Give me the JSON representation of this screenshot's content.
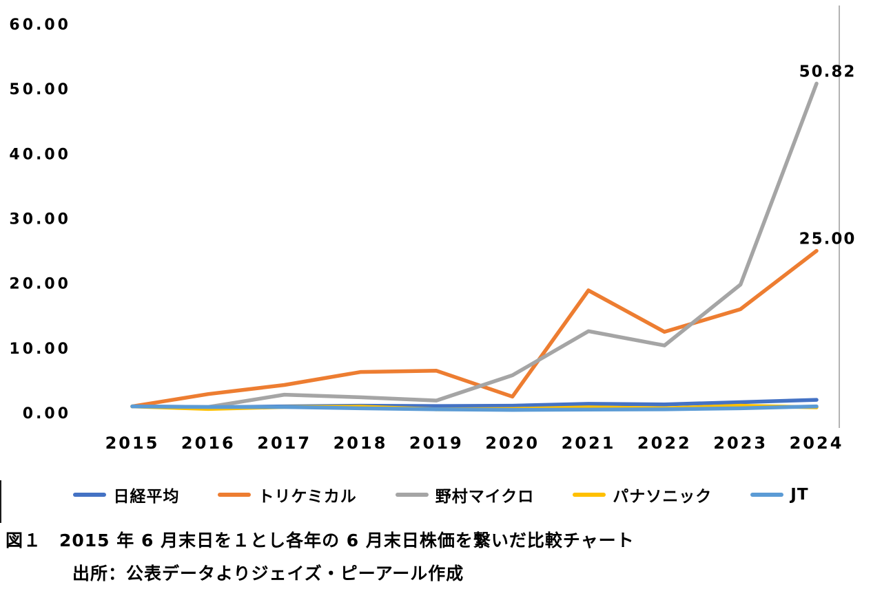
{
  "chart_data": {
    "type": "line",
    "title": "",
    "xlabel": "",
    "ylabel": "",
    "ylim": [
      0,
      60
    ],
    "grid": false,
    "legend_position": "bottom",
    "x": [
      2015,
      2016,
      2017,
      2018,
      2019,
      2020,
      2021,
      2022,
      2023,
      2024
    ],
    "x_ticks": [
      "2015",
      "2016",
      "2017",
      "2018",
      "2019",
      "2020",
      "2021",
      "2022",
      "2023",
      "2024"
    ],
    "y_ticks": [
      "0.00",
      "10.00",
      "20.00",
      "30.00",
      "40.00",
      "50.00",
      "60.00"
    ],
    "series": [
      {
        "name": "日経平均",
        "color": "#4472C4",
        "values": [
          1.0,
          0.85,
          1.0,
          1.1,
          1.05,
          1.1,
          1.4,
          1.3,
          1.65,
          2.0
        ]
      },
      {
        "name": "トリケミカル",
        "color": "#ED7D31",
        "values": [
          1.0,
          2.9,
          4.3,
          6.3,
          6.5,
          2.5,
          18.9,
          12.5,
          16.0,
          25.0
        ]
      },
      {
        "name": "野村マイクロ",
        "color": "#A5A5A5",
        "values": [
          1.0,
          0.9,
          2.8,
          2.4,
          1.9,
          5.8,
          12.6,
          10.4,
          19.8,
          50.82
        ]
      },
      {
        "name": "パナソニック",
        "color": "#FFC000",
        "values": [
          1.0,
          0.6,
          0.9,
          0.95,
          0.55,
          0.6,
          0.85,
          0.7,
          1.1,
          0.85
        ]
      },
      {
        "name": "JT",
        "color": "#5B9BD5",
        "values": [
          1.0,
          0.9,
          0.9,
          0.7,
          0.55,
          0.45,
          0.5,
          0.55,
          0.7,
          1.0
        ]
      }
    ],
    "annotations": [
      {
        "text": "50.82",
        "series": "野村マイクロ",
        "x": "2024"
      },
      {
        "text": "25.00",
        "series": "トリケミカル",
        "x": "2024"
      }
    ]
  },
  "caption": {
    "line1": "図１　2015 年 6 月末日を１とし各年の 6 月末日株価を繋いだ比較チャート",
    "line2": "出所：公表データよりジェイズ・ピーアール作成"
  }
}
